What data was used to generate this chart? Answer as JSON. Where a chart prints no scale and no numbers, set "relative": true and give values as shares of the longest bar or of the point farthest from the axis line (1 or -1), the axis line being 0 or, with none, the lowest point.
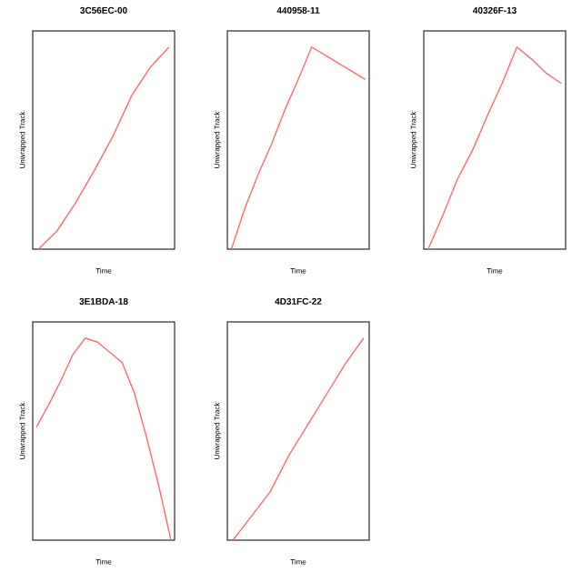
{
  "chart_data": [
    {
      "type": "line",
      "title": "3C56EC-00",
      "xlabel": "Time",
      "ylabel": "Unwrapped Track",
      "relative": true,
      "categories": [
        null,
        null,
        null,
        null,
        null,
        null,
        null,
        null
      ],
      "series": [
        {
          "color": "#f07070",
          "values": [
            0,
            0.09,
            0.23,
            0.39,
            0.56,
            0.76,
            0.9,
            1
          ]
        }
      ]
    },
    {
      "type": "line",
      "title": "440958-11",
      "xlabel": "Time",
      "ylabel": "Unwrapped Track",
      "relative": true,
      "categories": [
        null,
        null,
        null,
        null,
        null,
        null,
        null,
        null,
        null,
        null,
        null
      ],
      "series": [
        {
          "color": "#f07070",
          "values": [
            0,
            0.2,
            0.37,
            0.52,
            0.69,
            0.84,
            1,
            0.96,
            0.92,
            0.88,
            0.84
          ]
        }
      ]
    },
    {
      "type": "line",
      "title": "40326F-13",
      "xlabel": "Time",
      "ylabel": "Unwrapped Track",
      "relative": true,
      "categories": [
        null,
        null,
        null,
        null,
        null,
        null,
        null,
        null,
        null,
        null
      ],
      "series": [
        {
          "color": "#f07070",
          "values": [
            0,
            0.17,
            0.35,
            0.49,
            0.66,
            0.82,
            1,
            0.94,
            0.87,
            0.82
          ]
        }
      ]
    },
    {
      "type": "line",
      "title": "3E1BDA-18",
      "xlabel": "Time",
      "ylabel": "Unwrapped Track",
      "relative": true,
      "categories": [
        null,
        null,
        null,
        null,
        null,
        null,
        null,
        null,
        null,
        null,
        null,
        null
      ],
      "series": [
        {
          "color": "#f07070",
          "values": [
            0.56,
            0.67,
            0.79,
            0.92,
            1,
            0.98,
            0.93,
            0.88,
            0.73,
            0.51,
            0.27,
            0
          ]
        }
      ]
    },
    {
      "type": "line",
      "title": "4D31FC-22",
      "xlabel": "Time",
      "ylabel": "Unwrapped Track",
      "relative": true,
      "categories": [
        null,
        null,
        null,
        null,
        null,
        null,
        null,
        null
      ],
      "series": [
        {
          "color": "#f07070",
          "values": [
            0,
            0.12,
            0.24,
            0.42,
            0.57,
            0.72,
            0.87,
            1
          ]
        }
      ]
    }
  ]
}
